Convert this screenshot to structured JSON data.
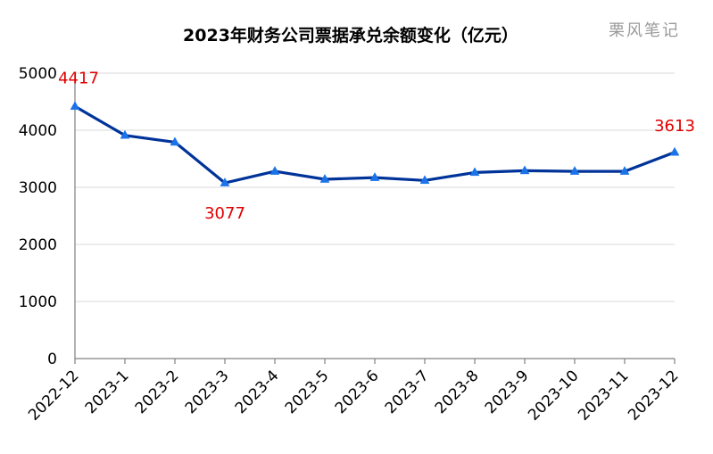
{
  "chart_data": {
    "type": "line",
    "title": "2023年财务公司票据承兑余额变化（亿元）",
    "watermark": "栗风笔记",
    "xlabel": "",
    "ylabel": "",
    "categories": [
      "2022-12",
      "2023-1",
      "2023-2",
      "2023-3",
      "2023-4",
      "2023-5",
      "2023-6",
      "2023-7",
      "2023-8",
      "2023-9",
      "2023-10",
      "2023-11",
      "2023-12"
    ],
    "series": [
      {
        "values": [
          4417,
          3910,
          3790,
          3077,
          3280,
          3140,
          3170,
          3120,
          3260,
          3290,
          3280,
          3280,
          3613
        ]
      }
    ],
    "ylim": [
      0,
      5000
    ],
    "yticks": [
      0,
      1000,
      2000,
      3000,
      4000,
      5000
    ],
    "grid": true,
    "legend": "none",
    "line_color": "#003399",
    "marker_color": "#1a73e8",
    "label_color": "#e00000",
    "data_labels": [
      {
        "index": 0,
        "text": "4417"
      },
      {
        "index": 3,
        "text": "3077"
      },
      {
        "index": 12,
        "text": "3613"
      }
    ]
  }
}
